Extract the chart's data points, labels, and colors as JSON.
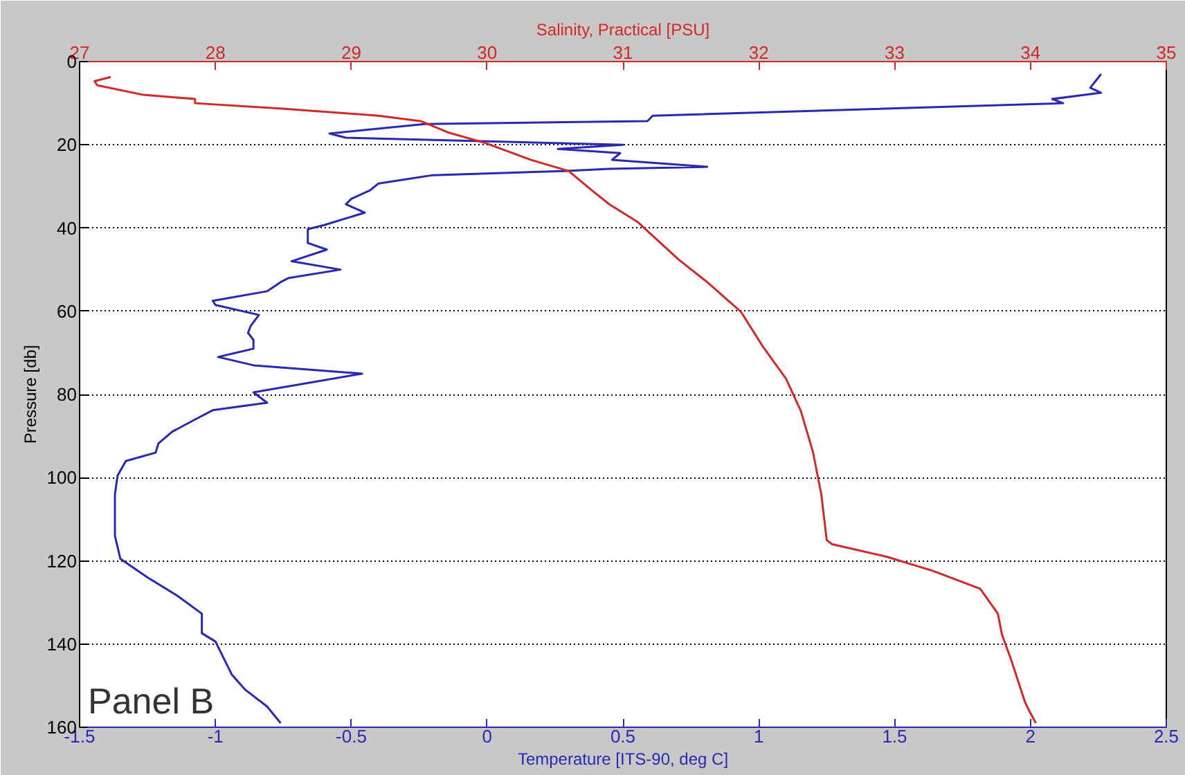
{
  "chart_data": {
    "type": "line",
    "xlabel": "Temperature [ITS-90, deg C]",
    "x2label": "Salinity, Practical [PSU]",
    "ylabel": "Pressure [db]",
    "xlim": [
      -1.5,
      2.5
    ],
    "xticks": [
      -1.5,
      -1,
      -0.5,
      0,
      0.5,
      1,
      1.5,
      2,
      2.5
    ],
    "x2lim": [
      27,
      35
    ],
    "x2ticks": [
      27,
      28,
      29,
      30,
      31,
      32,
      33,
      34,
      35
    ],
    "ylim": [
      160,
      0
    ],
    "yticks": [
      0,
      20,
      40,
      60,
      80,
      100,
      120,
      140,
      160
    ],
    "grid": "y",
    "line_style": "solid",
    "marker": "none",
    "annotations": [
      "Panel B"
    ],
    "series": [
      {
        "color": "#2828b4",
        "x": [
          2.26,
          2.22,
          2.26,
          2.08,
          2.12,
          0.61,
          0.59,
          -0.23,
          -0.58,
          -0.52,
          0.5,
          0.26,
          0.49,
          0.46,
          0.81,
          0.45,
          0.28,
          -0.2,
          -0.4,
          -0.43,
          -0.5,
          -0.52,
          -0.45,
          -0.6,
          -0.66,
          -0.66,
          -0.59,
          -0.72,
          -0.54,
          -0.73,
          -0.76,
          -0.81,
          -1.01,
          -1.0,
          -0.84,
          -0.87,
          -0.88,
          -0.86,
          -0.86,
          -0.99,
          -0.86,
          -0.46,
          -0.86,
          -0.81,
          -1.01,
          -1.08,
          -1.16,
          -1.21,
          -1.22,
          -1.33,
          -1.36,
          -1.37,
          -1.37,
          -1.37,
          -1.35,
          -1.25,
          -1.14,
          -1.05,
          -1.05,
          -1.0,
          -0.94,
          -0.89,
          -0.81,
          -0.76
        ],
        "values": [
          3,
          6.3,
          7.5,
          9,
          10,
          13,
          14.3,
          15,
          17.3,
          18.3,
          20,
          21,
          22,
          23.6,
          25.3,
          25.8,
          26.3,
          27.3,
          29.3,
          30.9,
          33,
          34.3,
          36.3,
          39.3,
          40.3,
          43.6,
          45.2,
          48,
          50,
          52,
          53,
          55.2,
          57.5,
          58.5,
          60.9,
          63.5,
          65.2,
          66.9,
          69,
          71,
          73,
          75,
          79.5,
          82,
          83.8,
          86.2,
          89,
          91.8,
          94,
          96,
          99.5,
          104,
          109.5,
          114,
          119.5,
          124,
          128.4,
          132.7,
          137.4,
          139.4,
          147.3,
          151,
          155,
          159
        ]
      },
      {
        "color": "#d22828",
        "axis": "x2",
        "x": [
          27.23,
          27.11,
          27.13,
          27.47,
          27.85,
          27.85,
          28.49,
          29.2,
          29.51,
          29.71,
          29.99,
          30.32,
          30.6,
          30.77,
          30.9,
          31.11,
          31.41,
          31.62,
          31.87,
          32.03,
          32.2,
          32.31,
          32.4,
          32.46,
          32.5,
          32.54,
          32.94,
          33.28,
          33.63,
          33.76,
          33.79,
          33.86,
          33.96,
          33.99,
          34.04
        ],
        "values": [
          3.7,
          4.7,
          5.7,
          8,
          9,
          10,
          11.3,
          13,
          14.3,
          17,
          19.6,
          23.6,
          26.3,
          30.9,
          34.3,
          38.6,
          47.6,
          53,
          60.2,
          68.5,
          76.2,
          84,
          94,
          104,
          115,
          116,
          119,
          122.4,
          126.7,
          132.7,
          137.7,
          144,
          154,
          156,
          159
        ]
      }
    ]
  }
}
